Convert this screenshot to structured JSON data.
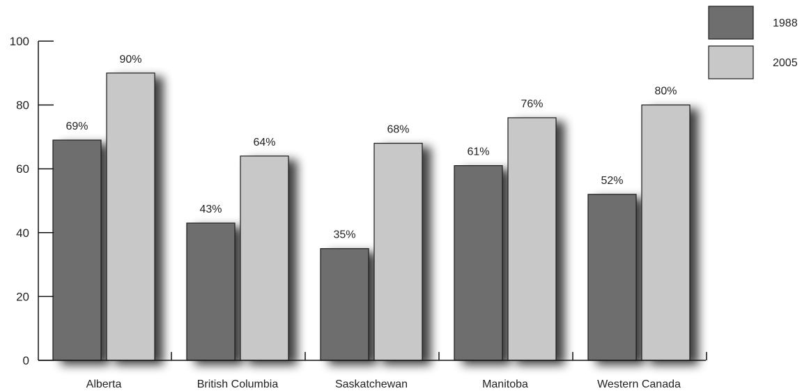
{
  "chart_data": {
    "type": "bar",
    "categories": [
      "Alberta",
      "British Columbia",
      "Saskatchewan",
      "Manitoba",
      "Western Canada"
    ],
    "series": [
      {
        "name": "1988",
        "color": "#6e6e6e",
        "values": [
          69,
          43,
          35,
          61,
          52
        ],
        "labels": [
          "69%",
          "43%",
          "35%",
          "61%",
          "52%"
        ]
      },
      {
        "name": "2005",
        "color": "#c8c8c8",
        "values": [
          90,
          64,
          68,
          76,
          80
        ],
        "labels": [
          "90%",
          "64%",
          "68%",
          "76%",
          "80%"
        ]
      }
    ],
    "yticks": [
      "0",
      "20",
      "40",
      "60",
      "80",
      "100"
    ],
    "ylim": [
      0,
      100
    ],
    "title": "",
    "xlabel": "",
    "ylabel": "",
    "grid": false,
    "legend": "top-right"
  }
}
